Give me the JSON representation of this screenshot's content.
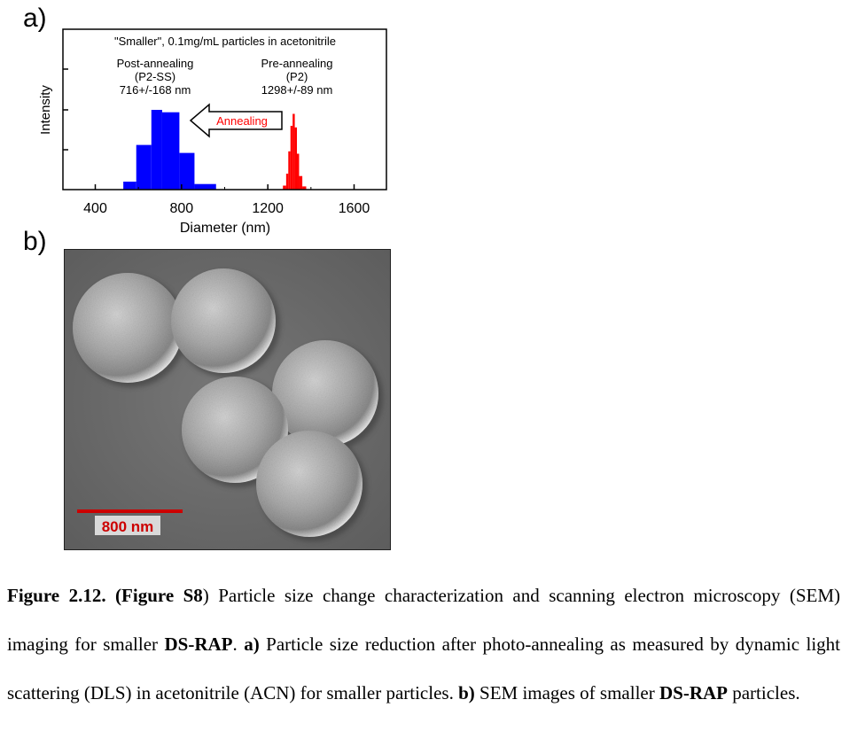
{
  "panel_a_label": "a)",
  "panel_b_label": "b)",
  "chart_data": {
    "type": "bar",
    "title": "\"Smaller\", 0.1mg/mL particles in acetonitrile",
    "xlabel": "Diameter (nm)",
    "ylabel": "Intensity",
    "xlim": [
      250,
      1750
    ],
    "xticks": [
      400,
      800,
      1200,
      1600
    ],
    "grid": false,
    "series": [
      {
        "color": "#0000ff",
        "bins": [
          {
            "x0": 530,
            "x1": 590,
            "y": 0.1
          },
          {
            "x0": 590,
            "x1": 660,
            "y": 0.56
          },
          {
            "x0": 660,
            "x1": 710,
            "y": 1.0
          },
          {
            "x0": 710,
            "x1": 790,
            "y": 0.97
          },
          {
            "x0": 790,
            "x1": 860,
            "y": 0.46
          },
          {
            "x0": 860,
            "x1": 960,
            "y": 0.07
          }
        ]
      },
      {
        "color": "#ff0000",
        "bins": [
          {
            "x0": 1270,
            "x1": 1285,
            "y": 0.05
          },
          {
            "x0": 1285,
            "x1": 1295,
            "y": 0.2
          },
          {
            "x0": 1295,
            "x1": 1305,
            "y": 0.48
          },
          {
            "x0": 1305,
            "x1": 1315,
            "y": 0.8
          },
          {
            "x0": 1315,
            "x1": 1325,
            "y": 0.95
          },
          {
            "x0": 1325,
            "x1": 1335,
            "y": 0.78
          },
          {
            "x0": 1335,
            "x1": 1345,
            "y": 0.45
          },
          {
            "x0": 1345,
            "x1": 1360,
            "y": 0.17
          },
          {
            "x0": 1360,
            "x1": 1378,
            "y": 0.04
          }
        ]
      }
    ],
    "annotations": {
      "post": [
        "Post-annealing",
        "(P2-SS)",
        "716+/-168 nm"
      ],
      "pre": [
        "Pre-annealing",
        "(P2)",
        "1298+/-89 nm"
      ],
      "arrow_label": "Annealing",
      "arrow_label_color": "#ff0000"
    }
  },
  "sem": {
    "scale_label": "800 nm",
    "scale_color": "#cc0000"
  },
  "caption": {
    "fig_label": "Figure 2.12.",
    "fig_s_label": "(Figure S8",
    "s1": ") Particle size change characterization and scanning electron microscopy (SEM) imaging for smaller ",
    "b1": "DS-RAP",
    "s2": ". ",
    "b2": "a)",
    "s3": " Particle size reduction after photo-annealing as measured by dynamic light scattering (DLS) in acetonitrile (ACN) for smaller particles. ",
    "b3": "b)",
    "s4": " SEM images of smaller ",
    "b4": "DS-RAP",
    "s5": " particles."
  }
}
